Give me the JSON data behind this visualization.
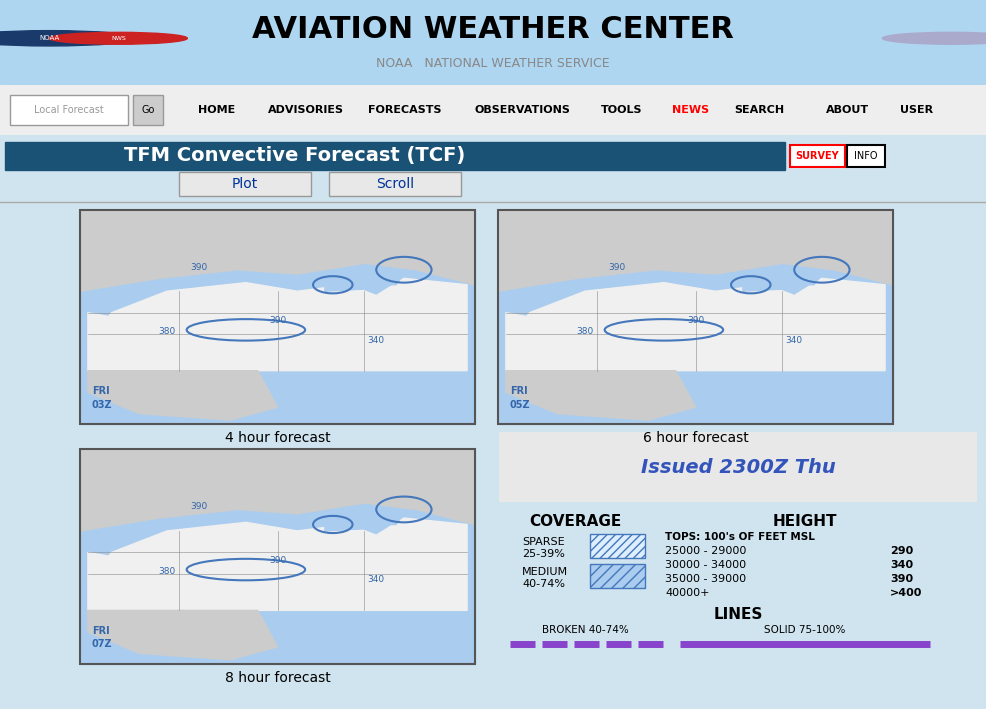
{
  "title": "TFM Convective Forecast (TCF)",
  "title_bg": "#1a5276",
  "title_color": "white",
  "page_bg": "#d0e4ef",
  "nav_items": [
    "HOME",
    "ADVISORIES",
    "FORECASTS",
    "OBSERVATIONS",
    "TOOLS",
    "NEWS",
    "SEARCH",
    "ABOUT",
    "USER"
  ],
  "nav_news_color": "red",
  "forecast_labels": [
    "4 hour forecast",
    "6 hour forecast",
    "8 hour forecast"
  ],
  "time_labels": [
    "FRI\n03Z",
    "FRI\n05Z",
    "FRI\n07Z"
  ],
  "issued_text": "Issued 2300Z Thu",
  "issued_color": "#3355bb",
  "coverage_title": "COVERAGE",
  "height_title": "HEIGHT",
  "tops_label": "TOPS: 100's OF FEET MSL",
  "height_rows": [
    [
      "25000 - 29000",
      "290"
    ],
    [
      "30000 - 34000",
      "340"
    ],
    [
      "35000 - 39000",
      "390"
    ],
    [
      "40000+",
      ">400"
    ]
  ],
  "lines_title": "LINES",
  "broken_label": "BROKEN 40-74%",
  "solid_label": "SOLID 75-100%",
  "purple_color": "#8844cc",
  "number_color": "#3366aa",
  "water_color": "#aaccee",
  "land_color": "#f0f0f0",
  "canada_color": "#cccccc",
  "header_bg": "#aed6f1",
  "nav_bg": "#eeeeee"
}
